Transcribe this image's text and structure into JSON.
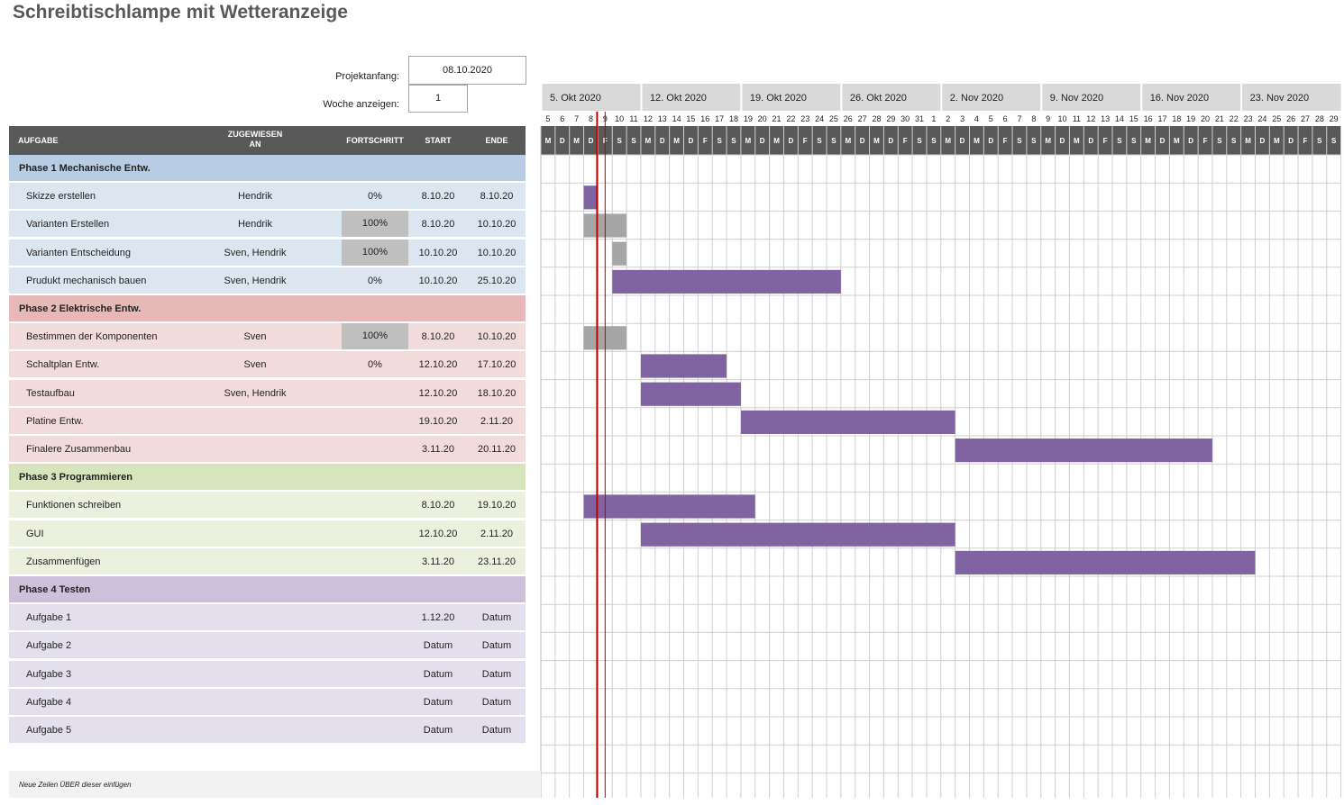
{
  "title": "Schreibtischlampe mit Wetteranzeige",
  "project_start_label": "Projektanfang:",
  "project_start_value": "08.10.2020",
  "week_label": "Woche anzeigen:",
  "week_value": "1",
  "columns": {
    "task": "AUFGABE",
    "assigned": "ZUGEWIESEN AN",
    "progress": "FORTSCHRITT",
    "start": "START",
    "end": "ENDE"
  },
  "colors": {
    "header_bg": "#595959",
    "bar": "#8064a2",
    "bar_done": "#a6a6a6",
    "today_line": "#c00000",
    "phase1_head": "#b8cce4",
    "phase1_row": "#dce6f1",
    "phase2_head": "#e6b8b7",
    "phase2_row": "#f2dcdb",
    "phase3_head": "#d8e4bc",
    "phase3_row": "#ebf1de",
    "phase4_head": "#ccc0da",
    "phase4_row": "#e4dfec"
  },
  "weeks": [
    "5. Okt 2020",
    "12. Okt 2020",
    "19. Okt 2020",
    "26. Okt 2020",
    "2. Nov 2020",
    "9. Nov 2020",
    "16. Nov 2020",
    "23. Nov 2020"
  ],
  "day_numbers": [
    "5",
    "6",
    "7",
    "8",
    "9",
    "10",
    "11",
    "12",
    "13",
    "14",
    "15",
    "16",
    "17",
    "18",
    "19",
    "20",
    "21",
    "22",
    "23",
    "24",
    "25",
    "26",
    "27",
    "28",
    "29",
    "30",
    "31",
    "1",
    "2",
    "3",
    "4",
    "5",
    "6",
    "7",
    "8",
    "9",
    "10",
    "11",
    "12",
    "13",
    "14",
    "15",
    "16",
    "17",
    "18",
    "19",
    "20",
    "21",
    "22",
    "23",
    "24",
    "25",
    "26",
    "27",
    "28",
    "29"
  ],
  "weekday_letters": [
    "M",
    "D",
    "M",
    "D",
    "F",
    "S",
    "S"
  ],
  "rows": [
    {
      "type": "phase",
      "phase": 1,
      "task": "Phase 1 Mechanische Entw."
    },
    {
      "type": "task",
      "phase": 1,
      "task": "Skizze erstellen",
      "assigned": "Hendrik",
      "progress": "0%",
      "start": "8.10.20",
      "end": "8.10.20",
      "bar": [
        3,
        1
      ],
      "done": false
    },
    {
      "type": "task",
      "phase": 1,
      "task": "Varianten Erstellen",
      "assigned": "Hendrik",
      "progress": "100%",
      "start": "8.10.20",
      "end": "10.10.20",
      "bar": [
        3,
        3
      ],
      "done": true
    },
    {
      "type": "task",
      "phase": 1,
      "task": "Varianten Entscheidung",
      "assigned": "Sven, Hendrik",
      "progress": "100%",
      "start": "10.10.20",
      "end": "10.10.20",
      "bar": [
        5,
        1
      ],
      "done": true
    },
    {
      "type": "task",
      "phase": 1,
      "task": "Prudukt mechanisch bauen",
      "assigned": "Sven, Hendrik",
      "progress": "0%",
      "start": "10.10.20",
      "end": "25.10.20",
      "bar": [
        5,
        16
      ],
      "done": false
    },
    {
      "type": "phase",
      "phase": 2,
      "task": "Phase 2  Elektrische Entw."
    },
    {
      "type": "task",
      "phase": 2,
      "task": "Bestimmen der Komponenten",
      "assigned": "Sven",
      "progress": "100%",
      "start": "8.10.20",
      "end": "10.10.20",
      "bar": [
        3,
        3
      ],
      "done": true
    },
    {
      "type": "task",
      "phase": 2,
      "task": "Schaltplan Entw.",
      "assigned": "Sven",
      "progress": "0%",
      "start": "12.10.20",
      "end": "17.10.20",
      "bar": [
        7,
        6
      ],
      "done": false
    },
    {
      "type": "task",
      "phase": 2,
      "task": "Testaufbau",
      "assigned": "Sven, Hendrik",
      "progress": "",
      "start": "12.10.20",
      "end": "18.10.20",
      "bar": [
        7,
        7
      ],
      "done": false
    },
    {
      "type": "task",
      "phase": 2,
      "task": "Platine Entw.",
      "assigned": "",
      "progress": "",
      "start": "19.10.20",
      "end": "2.11.20",
      "bar": [
        14,
        15
      ],
      "done": false
    },
    {
      "type": "task",
      "phase": 2,
      "task": "Finalere Zusammenbau",
      "assigned": "",
      "progress": "",
      "start": "3.11.20",
      "end": "20.11.20",
      "bar": [
        29,
        18
      ],
      "done": false
    },
    {
      "type": "phase",
      "phase": 3,
      "task": "Phase 3 Programmieren"
    },
    {
      "type": "task",
      "phase": 3,
      "task": "Funktionen schreiben",
      "assigned": "",
      "progress": "",
      "start": "8.10.20",
      "end": "19.10.20",
      "bar": [
        3,
        12
      ],
      "done": false
    },
    {
      "type": "task",
      "phase": 3,
      "task": "GUI",
      "assigned": "",
      "progress": "",
      "start": "12.10.20",
      "end": "2.11.20",
      "bar": [
        7,
        22
      ],
      "done": false
    },
    {
      "type": "task",
      "phase": 3,
      "task": "Zusammenfügen",
      "assigned": "",
      "progress": "",
      "start": "3.11.20",
      "end": "23.11.20",
      "bar": [
        29,
        21
      ],
      "done": false
    },
    {
      "type": "phase",
      "phase": 4,
      "task": "Phase 4 Testen"
    },
    {
      "type": "task",
      "phase": 4,
      "task": "Aufgabe 1",
      "assigned": "",
      "progress": "",
      "start": "1.12.20",
      "end": "Datum",
      "bar": null,
      "done": false
    },
    {
      "type": "task",
      "phase": 4,
      "task": "Aufgabe 2",
      "assigned": "",
      "progress": "",
      "start": "Datum",
      "end": "Datum",
      "bar": null,
      "done": false
    },
    {
      "type": "task",
      "phase": 4,
      "task": "Aufgabe 3",
      "assigned": "",
      "progress": "",
      "start": "Datum",
      "end": "Datum",
      "bar": null,
      "done": false
    },
    {
      "type": "task",
      "phase": 4,
      "task": "Aufgabe 4",
      "assigned": "",
      "progress": "",
      "start": "Datum",
      "end": "Datum",
      "bar": null,
      "done": false
    },
    {
      "type": "task",
      "phase": 4,
      "task": "Aufgabe 5",
      "assigned": "",
      "progress": "",
      "start": "Datum",
      "end": "Datum",
      "bar": null,
      "done": false
    }
  ],
  "today_day_index": 4,
  "footer_note": "Neue Zeilen ÜBER dieser einfügen"
}
